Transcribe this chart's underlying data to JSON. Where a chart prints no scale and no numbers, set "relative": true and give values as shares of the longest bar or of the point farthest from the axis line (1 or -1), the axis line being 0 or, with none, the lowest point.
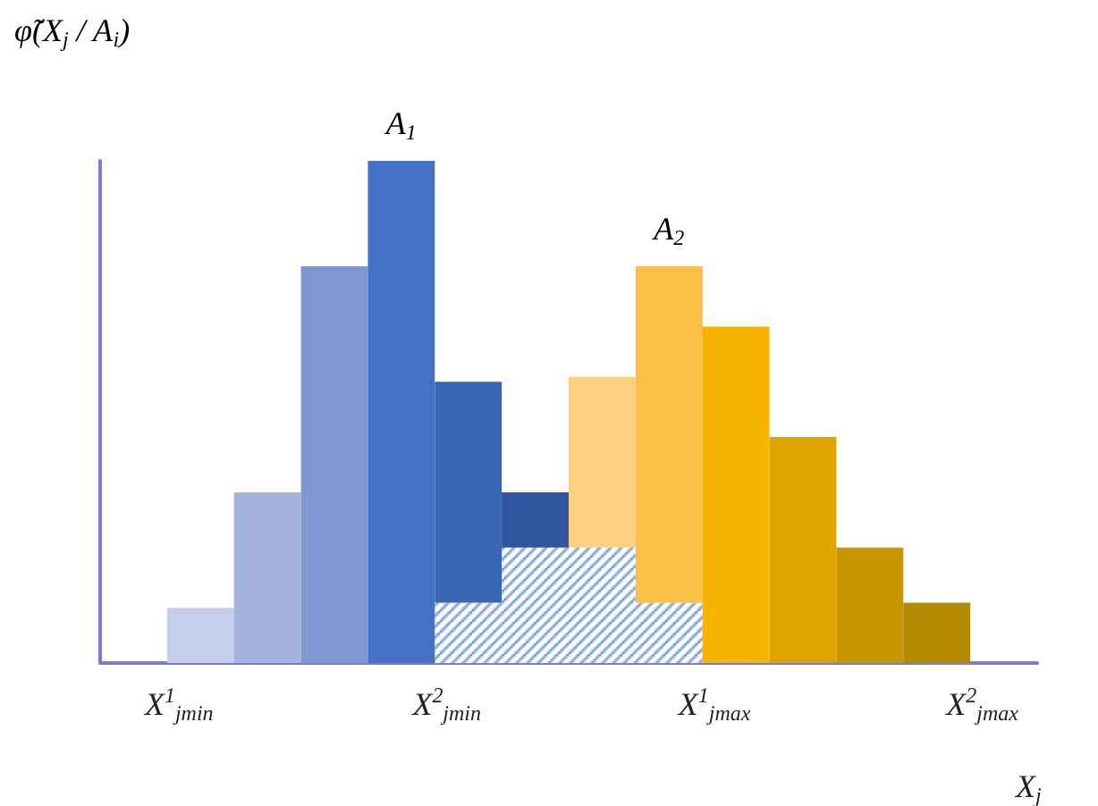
{
  "chart_data": {
    "type": "bar",
    "relative": true,
    "stacked": true,
    "ylabel": "φ̃(X$_{j}$ / A$_{i}$)",
    "xlabel": "X$_{j}$",
    "categories": [
      null,
      "X$^{1}$$_{jmin}$",
      null,
      null,
      null,
      "X$^{2}$$_{jmin}$",
      null,
      null,
      null,
      "X$^{1}$$_{jmax}$",
      null,
      null,
      null,
      "X$^{2}$$_{jmax}$"
    ],
    "series": [
      {
        "type": "bar",
        "color": "#4a80cf",
        "values": [
          null,
          null,
          null,
          null,
          null,
          0.12,
          0.23,
          0.23,
          0.12,
          null,
          null,
          null,
          null,
          null
        ]
      },
      {
        "name": "A$_{1}$",
        "colors": [
          null,
          "#c5cfe9",
          "#a4b3dc",
          "#7f97d0",
          "#4472c4",
          "#3a66b5",
          "#2f559e",
          null,
          null,
          null,
          null,
          null,
          null,
          null
        ],
        "values": [
          null,
          0.11,
          0.34,
          0.79,
          1,
          0.44,
          0.11,
          null,
          null,
          null,
          null,
          null,
          null,
          null
        ]
      },
      {
        "name": "A$_{2}$",
        "colors": [
          null,
          null,
          null,
          null,
          null,
          null,
          null,
          "#fdcf83",
          "#fbbf45",
          "#f6b400",
          "#e0a500",
          "#c99700",
          "#b38a00",
          null
        ],
        "values": [
          null,
          null,
          null,
          null,
          null,
          null,
          null,
          0.34,
          0.67,
          0.67,
          0.45,
          0.23,
          0.12,
          null
        ]
      }
    ]
  }
}
